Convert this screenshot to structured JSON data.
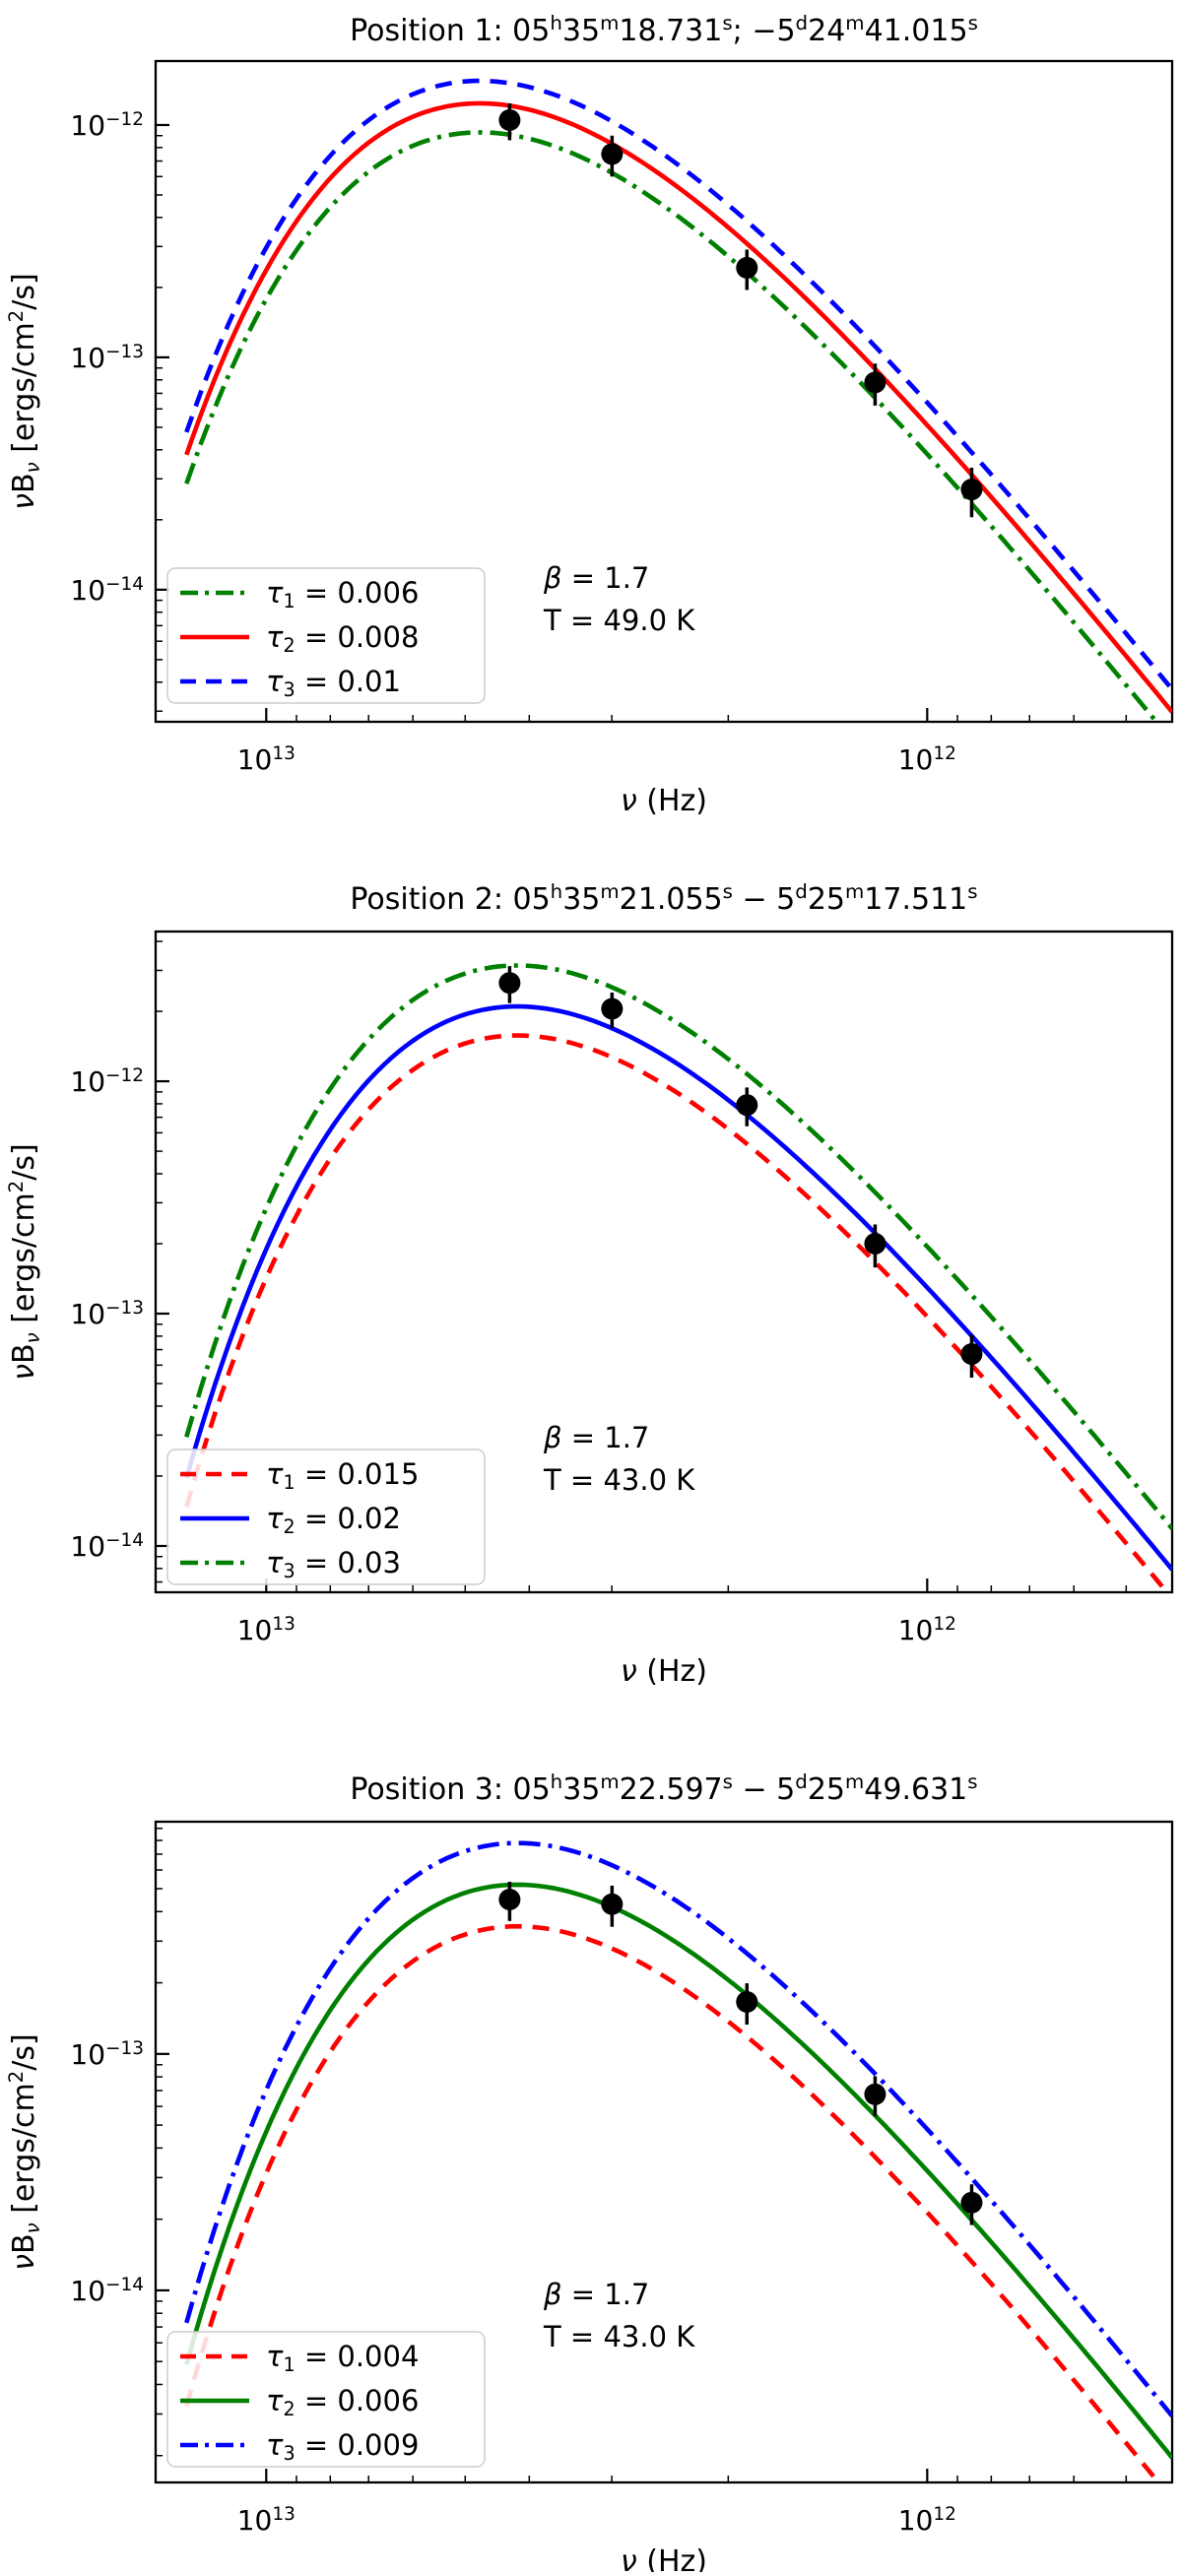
{
  "figure": {
    "xlabel": "ν (Hz)",
    "ylabel": "νB_{ν} [ergs/cm^{2}/s]"
  },
  "chart_data": [
    {
      "type": "line",
      "title": "Position 1: 05^{h}35^{m}18.731^{s}; −5^{d}24^{m}41.015^{s}",
      "annotations": {
        "beta": "β = 1.7",
        "temperature": "T = 49.0 K"
      },
      "model": {
        "temperature_K": 49.0,
        "beta": 1.7,
        "tau2_peak_flux": 1.24e-12,
        "peak_freq_hz": 4760000000000.0
      },
      "x_axis": {
        "label": "ν (Hz)",
        "scale": "log",
        "inverted": true,
        "min_hz": 426000000000.0,
        "max_hz": 14700000000000.0,
        "major_ticks": [
          {
            "value": 10000000000000.0,
            "label": "10^{13}"
          },
          {
            "value": 1000000000000.0,
            "label": "10^{12}"
          }
        ]
      },
      "y_axis": {
        "scale": "log",
        "min": 2.7e-15,
        "max": 1.885e-12,
        "major_ticks": [
          {
            "value": 1e-12,
            "label": "10^{−12}"
          },
          {
            "value": 1e-13,
            "label": "10^{−13}"
          },
          {
            "value": 1e-14,
            "label": "10^{−14}"
          }
        ]
      },
      "curves": [
        {
          "name": "tau1",
          "legend_label": "τ_{1} = 0.006",
          "tau": 0.006,
          "color": "#008000",
          "style": "dashdot"
        },
        {
          "name": "tau2",
          "legend_label": "τ_{2} = 0.008",
          "tau": 0.008,
          "color": "#ff0000",
          "style": "solid"
        },
        {
          "name": "tau3",
          "legend_label": "τ_{3} = 0.01",
          "tau": 0.01,
          "color": "#0000ff",
          "style": "dashed"
        }
      ],
      "data_points": {
        "frequency_hz": [
          4283000000000.0,
          2998000000000.0,
          1874000000000.0,
          1199000000000.0,
          856500000000.0
        ],
        "flux": [
          1.05e-12,
          7.5e-13,
          2.43e-13,
          7.8e-14,
          2.7e-14
        ],
        "flux_err": [
          1.9e-13,
          1.5e-13,
          4.8e-14,
          1.6e-14,
          6.5e-15
        ]
      }
    },
    {
      "type": "line",
      "title": "Position 2: 05^{h}35^{m}21.055^{s} − 5^{d}25^{m}17.511^{s}",
      "annotations": {
        "beta": "β = 1.7",
        "temperature": "T = 43.0 K"
      },
      "model": {
        "temperature_K": 43.0,
        "beta": 1.7,
        "tau2_peak_flux": 2.1e-12,
        "peak_freq_hz": 4180000000000.0
      },
      "x_axis": {
        "label": "ν (Hz)",
        "scale": "log",
        "inverted": true,
        "min_hz": 426000000000.0,
        "max_hz": 14700000000000.0,
        "major_ticks": [
          {
            "value": 10000000000000.0,
            "label": "10^{13}"
          },
          {
            "value": 1000000000000.0,
            "label": "10^{12}"
          }
        ]
      },
      "y_axis": {
        "scale": "log",
        "min": 6.32e-15,
        "max": 4.41e-12,
        "major_ticks": [
          {
            "value": 1e-12,
            "label": "10^{−12}"
          },
          {
            "value": 1e-13,
            "label": "10^{−13}"
          },
          {
            "value": 1e-14,
            "label": "10^{−14}"
          }
        ]
      },
      "curves": [
        {
          "name": "tau1",
          "legend_label": "τ_{1} = 0.015",
          "tau": 0.015,
          "color": "#ff0000",
          "style": "dashed"
        },
        {
          "name": "tau2",
          "legend_label": "τ_{2} = 0.02",
          "tau": 0.02,
          "color": "#0000ff",
          "style": "solid"
        },
        {
          "name": "tau3",
          "legend_label": "τ_{3} = 0.03",
          "tau": 0.03,
          "color": "#008000",
          "style": "dashdot"
        }
      ],
      "data_points": {
        "frequency_hz": [
          4283000000000.0,
          2998000000000.0,
          1874000000000.0,
          1199000000000.0,
          856500000000.0
        ],
        "flux": [
          2.65e-12,
          2.05e-12,
          7.9e-13,
          2e-13,
          6.7e-14
        ],
        "flux_err": [
          4.8e-13,
          3.6e-13,
          1.5e-13,
          4.2e-14,
          1.4e-14
        ]
      }
    },
    {
      "type": "line",
      "title": "Position 3: 05^{h}35^{m}22.597^{s} − 5^{d}25^{m}49.631^{s}",
      "annotations": {
        "beta": "β = 1.7",
        "temperature": "T = 43.0 K"
      },
      "model": {
        "temperature_K": 43.0,
        "beta": 1.7,
        "tau2_peak_flux": 5.2e-13,
        "peak_freq_hz": 4180000000000.0
      },
      "x_axis": {
        "label": "ν (Hz)",
        "scale": "log",
        "inverted": true,
        "min_hz": 426000000000.0,
        "max_hz": 14700000000000.0,
        "major_ticks": [
          {
            "value": 10000000000000.0,
            "label": "10^{13}"
          },
          {
            "value": 1000000000000.0,
            "label": "10^{12}"
          }
        ]
      },
      "y_axis": {
        "scale": "log",
        "min": 1.54e-15,
        "max": 9.6e-13,
        "major_ticks": [
          {
            "value": 1e-13,
            "label": "10^{−13}"
          },
          {
            "value": 1e-14,
            "label": "10^{−14}"
          }
        ]
      },
      "curves": [
        {
          "name": "tau1",
          "legend_label": "τ_{1} = 0.004",
          "tau": 0.004,
          "color": "#ff0000",
          "style": "dashed"
        },
        {
          "name": "tau2",
          "legend_label": "τ_{2} = 0.006",
          "tau": 0.006,
          "color": "#008000",
          "style": "solid"
        },
        {
          "name": "tau3",
          "legend_label": "τ_{3} = 0.009",
          "tau": 0.009,
          "color": "#0000ff",
          "style": "dashdot"
        }
      ],
      "data_points": {
        "frequency_hz": [
          4283000000000.0,
          2998000000000.0,
          1874000000000.0,
          1199000000000.0,
          856500000000.0
        ],
        "flux": [
          4.5e-13,
          4.3e-13,
          1.66e-13,
          6.75e-14,
          2.35e-14
        ],
        "flux_err": [
          8.5e-14,
          8.5e-14,
          3.3e-14,
          1.3e-14,
          4.6e-15
        ]
      }
    }
  ]
}
